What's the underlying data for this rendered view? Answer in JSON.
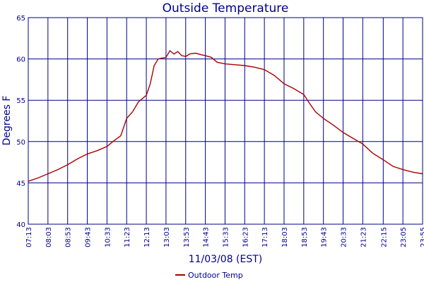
{
  "chart_data": {
    "type": "line",
    "title": "Outside Temperature",
    "xlabel": "11/03/08 (EST)",
    "ylabel": "Degrees F",
    "ylim": [
      40,
      65
    ],
    "yticks": [
      40,
      45,
      50,
      55,
      60,
      65
    ],
    "x_tick_labels": [
      "07:13",
      "08:03",
      "08:53",
      "09:43",
      "10:33",
      "11:23",
      "12:13",
      "13:03",
      "13:53",
      "14:43",
      "15:33",
      "16:23",
      "17:13",
      "18:03",
      "18:53",
      "19:43",
      "20:33",
      "21:23",
      "22:15",
      "23:05",
      "23:55"
    ],
    "grid": true,
    "legend_position": "bottom",
    "colors": {
      "series": "#aa0000",
      "axis": "#00008b",
      "grid": "#00008b"
    },
    "series": [
      {
        "name": "Outdoor Temp",
        "x": [
          "07:13",
          "07:38",
          "08:03",
          "08:28",
          "08:53",
          "09:18",
          "09:43",
          "10:08",
          "10:33",
          "10:48",
          "11:08",
          "11:23",
          "11:38",
          "11:53",
          "12:13",
          "12:23",
          "12:33",
          "12:43",
          "12:53",
          "13:03",
          "13:13",
          "13:23",
          "13:33",
          "13:43",
          "13:53",
          "14:03",
          "14:18",
          "14:33",
          "14:43",
          "14:58",
          "15:13",
          "15:33",
          "15:58",
          "16:23",
          "16:48",
          "17:13",
          "17:38",
          "18:03",
          "18:28",
          "18:53",
          "19:08",
          "19:23",
          "19:43",
          "20:08",
          "20:33",
          "20:58",
          "21:23",
          "21:48",
          "22:15",
          "22:40",
          "23:05",
          "23:30",
          "23:55"
        ],
        "values": [
          45.2,
          45.6,
          46.1,
          46.6,
          47.2,
          47.9,
          48.5,
          48.9,
          49.4,
          50.0,
          50.7,
          52.8,
          53.6,
          54.8,
          55.6,
          57.0,
          59.2,
          60.0,
          60.1,
          60.2,
          61.0,
          60.6,
          60.9,
          60.4,
          60.3,
          60.6,
          60.7,
          60.5,
          60.4,
          60.2,
          59.6,
          59.4,
          59.3,
          59.2,
          59.0,
          58.7,
          58.0,
          57.0,
          56.4,
          55.7,
          54.6,
          53.6,
          52.8,
          52.0,
          51.1,
          50.4,
          49.7,
          48.6,
          47.8,
          47.0,
          46.6,
          46.3,
          46.1
        ]
      }
    ]
  }
}
